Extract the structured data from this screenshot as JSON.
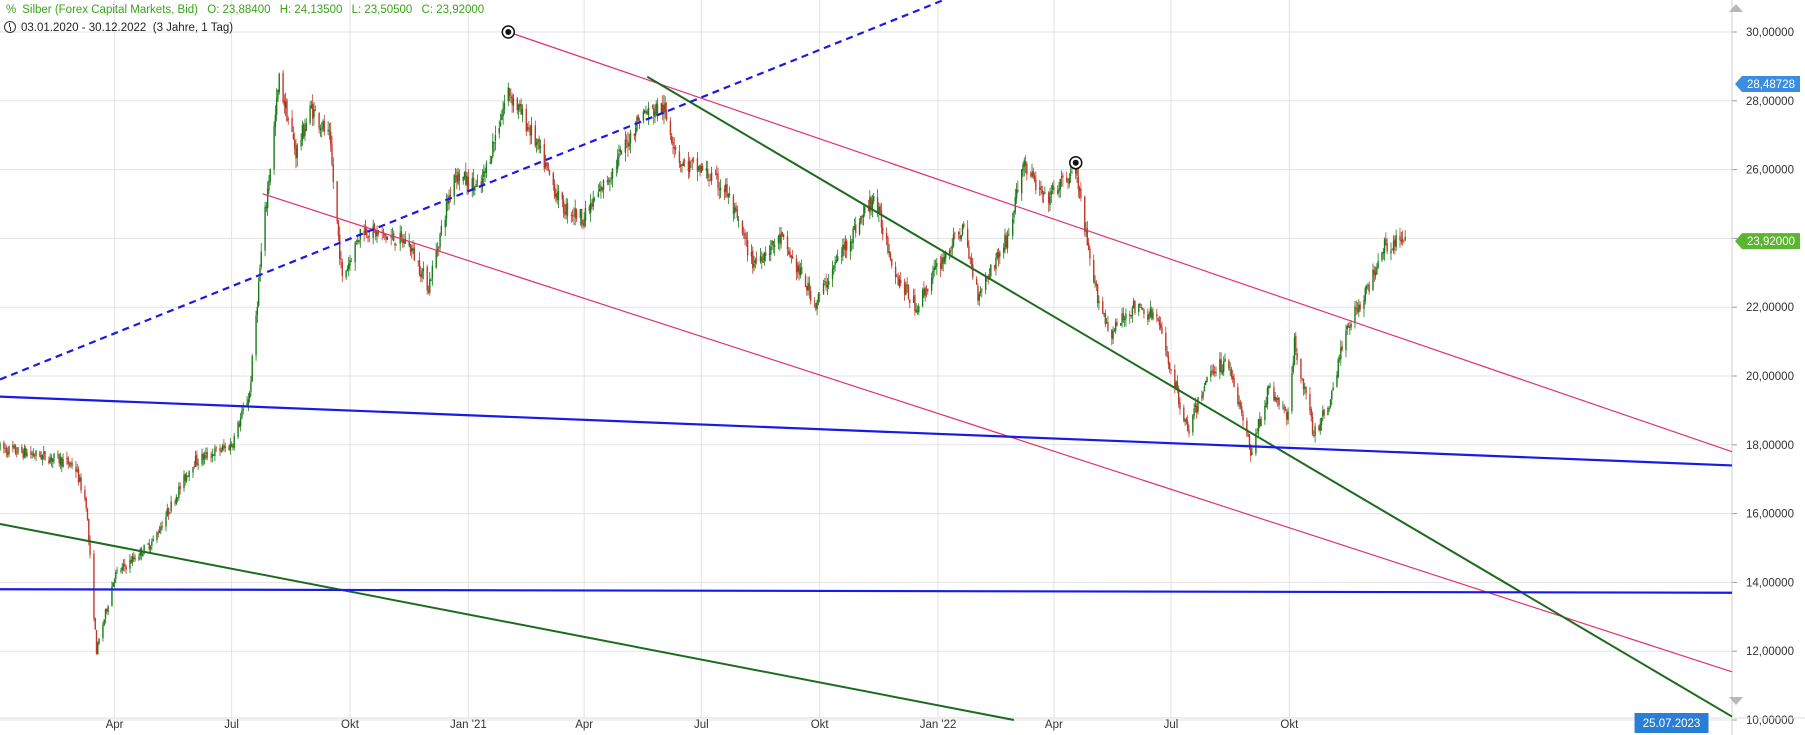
{
  "header": {
    "instrument": "Silber (Forex Capital Markets, Bid)",
    "open": "O: 23,88400",
    "high": "H: 24,13500",
    "low": "L: 23,50500",
    "close": "C: 23,92000",
    "date_range": "03.01.2020 - 30.12.2022",
    "range_info": "(3 Jahre, 1 Tag)"
  },
  "colors": {
    "candle_up": "#1a7a1a",
    "candle_down": "#c0392b",
    "pink_channel": "#e0336e",
    "green_trend": "#1e6b1e",
    "blue_line": "#1a1ae6",
    "grid": "#e3e3e3",
    "price_tag_blue": "#3b8de0",
    "price_tag_green": "#5bb531",
    "date_tag": "#2a7fd4"
  },
  "chart_data": {
    "type": "candlestick",
    "instrument": "Silber",
    "x_range": [
      "2020-01-03",
      "2023-09-10"
    ],
    "y_axis": {
      "min": 10,
      "max": 30,
      "ticks": [
        "10,00000",
        "12,00000",
        "14,00000",
        "16,00000",
        "18,00000",
        "20,00000",
        "22,00000",
        "24,00000",
        "26,00000",
        "28,00000",
        "30,00000"
      ]
    },
    "x_ticks": [
      {
        "label": "Apr",
        "date": "2020-04-01"
      },
      {
        "label": "Jul",
        "date": "2020-07-01"
      },
      {
        "label": "Okt",
        "date": "2020-10-01"
      },
      {
        "label": "Jan '21",
        "date": "2021-01-01"
      },
      {
        "label": "Apr",
        "date": "2021-04-01"
      },
      {
        "label": "Jul",
        "date": "2021-07-01"
      },
      {
        "label": "Okt",
        "date": "2021-10-01"
      },
      {
        "label": "Jan '22",
        "date": "2022-01-01"
      },
      {
        "label": "Apr",
        "date": "2022-04-01"
      },
      {
        "label": "Jul",
        "date": "2022-07-01"
      },
      {
        "label": "Okt",
        "date": "2022-10-01"
      }
    ],
    "price_path": [
      [
        "2020-01-03",
        17.9
      ],
      [
        "2020-02-15",
        17.6
      ],
      [
        "2020-03-01",
        17.4
      ],
      [
        "2020-03-10",
        16.3
      ],
      [
        "2020-03-18",
        12.0
      ],
      [
        "2020-04-01",
        14.2
      ],
      [
        "2020-05-01",
        15.2
      ],
      [
        "2020-06-01",
        17.5
      ],
      [
        "2020-07-01",
        18.0
      ],
      [
        "2020-07-15",
        19.5
      ],
      [
        "2020-07-25",
        24.0
      ],
      [
        "2020-08-07",
        28.6
      ],
      [
        "2020-08-20",
        26.5
      ],
      [
        "2020-09-01",
        27.8
      ],
      [
        "2020-09-15",
        26.9
      ],
      [
        "2020-09-25",
        22.8
      ],
      [
        "2020-10-10",
        24.3
      ],
      [
        "2020-11-01",
        24.0
      ],
      [
        "2020-11-15",
        23.9
      ],
      [
        "2020-12-01",
        22.6
      ],
      [
        "2020-12-21",
        25.9
      ],
      [
        "2021-01-10",
        25.4
      ],
      [
        "2021-02-01",
        28.3
      ],
      [
        "2021-02-20",
        27.0
      ],
      [
        "2021-03-15",
        24.9
      ],
      [
        "2021-04-01",
        24.6
      ],
      [
        "2021-04-25",
        26.1
      ],
      [
        "2021-05-15",
        27.6
      ],
      [
        "2021-06-01",
        27.8
      ],
      [
        "2021-06-15",
        26.2
      ],
      [
        "2021-07-01",
        26.0
      ],
      [
        "2021-07-20",
        25.4
      ],
      [
        "2021-08-10",
        23.3
      ],
      [
        "2021-09-01",
        24.0
      ],
      [
        "2021-09-28",
        22.1
      ],
      [
        "2021-10-15",
        23.4
      ],
      [
        "2021-11-12",
        25.2
      ],
      [
        "2021-11-30",
        22.9
      ],
      [
        "2021-12-15",
        22.0
      ],
      [
        "2022-01-01",
        23.2
      ],
      [
        "2022-01-20",
        24.3
      ],
      [
        "2022-02-01",
        22.4
      ],
      [
        "2022-02-25",
        24.1
      ],
      [
        "2022-03-08",
        26.2
      ],
      [
        "2022-03-25",
        25.1
      ],
      [
        "2022-04-18",
        26.0
      ],
      [
        "2022-05-01",
        22.8
      ],
      [
        "2022-05-15",
        21.2
      ],
      [
        "2022-06-01",
        22.0
      ],
      [
        "2022-06-20",
        21.7
      ],
      [
        "2022-07-14",
        18.4
      ],
      [
        "2022-08-01",
        20.2
      ],
      [
        "2022-08-15",
        20.4
      ],
      [
        "2022-09-01",
        17.8
      ],
      [
        "2022-09-15",
        19.6
      ],
      [
        "2022-10-01",
        18.8
      ],
      [
        "2022-10-05",
        21.0
      ],
      [
        "2022-10-20",
        18.3
      ],
      [
        "2022-11-01",
        19.2
      ],
      [
        "2022-11-15",
        21.5
      ],
      [
        "2022-12-01",
        22.5
      ],
      [
        "2022-12-12",
        23.8
      ],
      [
        "2022-12-30",
        23.92
      ]
    ],
    "trendlines": [
      {
        "color": "pink",
        "from": [
          "2021-02-01",
          30.0
        ],
        "to": [
          "2023-09-10",
          17.8
        ]
      },
      {
        "color": "pink",
        "from": [
          "2020-07-25",
          25.3
        ],
        "to": [
          "2023-09-10",
          11.4
        ]
      },
      {
        "color": "green",
        "from": [
          "2021-05-20",
          28.7
        ],
        "to": [
          "2023-09-10",
          10.1
        ]
      },
      {
        "color": "green",
        "from": [
          "2020-01-03",
          15.7
        ],
        "to": [
          "2022-03-01",
          10.0
        ]
      },
      {
        "color": "blue",
        "from": [
          "2020-01-03",
          19.4
        ],
        "to": [
          "2023-09-10",
          17.4
        ]
      },
      {
        "color": "blue",
        "from": [
          "2020-01-03",
          13.8
        ],
        "to": [
          "2023-09-10",
          13.7
        ]
      },
      {
        "color": "blue",
        "dashed": true,
        "from": [
          "2020-01-03",
          19.9
        ],
        "to": [
          "2022-01-10",
          31.0
        ]
      }
    ],
    "markers": [
      {
        "date": "2021-02-01",
        "price": 30.0
      },
      {
        "date": "2022-04-18",
        "price": 26.2
      }
    ],
    "price_tags": [
      {
        "label": "28,48728",
        "value": 28.48728,
        "color": "blue"
      },
      {
        "label": "23,92000",
        "value": 23.92,
        "color": "green"
      }
    ],
    "date_tag": {
      "label": "25.07.2023",
      "date": "2023-07-25"
    }
  }
}
